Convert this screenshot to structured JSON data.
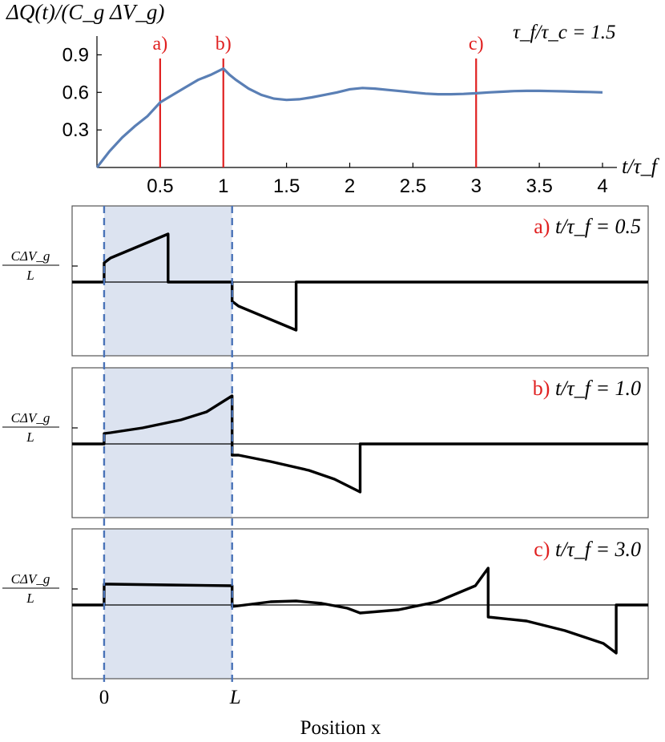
{
  "chart_data": [
    {
      "type": "line",
      "panel": "top",
      "ylabel": "ΔQ(t)/(C_g ΔV_g)",
      "xlabel": "t/τ_f",
      "annotation": "τ_f/τ_c = 1.5",
      "xlim": [
        0,
        4
      ],
      "ylim": [
        0,
        1.05
      ],
      "xticks": [
        0.5,
        1,
        1.5,
        2,
        2.5,
        3,
        3.5,
        4
      ],
      "xtick_labels": [
        "0.5",
        "1",
        "1.5",
        "2",
        "2.5",
        "3",
        "3.5",
        "4"
      ],
      "yticks": [
        0.3,
        0.6,
        0.9
      ],
      "ytick_labels": [
        "0.3",
        "0.6",
        "0.9"
      ],
      "series": [
        {
          "color": "#5a7fb5",
          "x": [
            0,
            0.1,
            0.2,
            0.3,
            0.4,
            0.5,
            0.6,
            0.7,
            0.8,
            0.9,
            1.0,
            1.05,
            1.1,
            1.2,
            1.3,
            1.4,
            1.5,
            1.6,
            1.7,
            1.8,
            1.9,
            2.0,
            2.1,
            2.2,
            2.3,
            2.4,
            2.5,
            2.6,
            2.7,
            2.8,
            2.9,
            3.0,
            3.1,
            3.2,
            3.3,
            3.4,
            3.5,
            3.6,
            3.7,
            3.8,
            3.9,
            4.0
          ],
          "y": [
            0,
            0.13,
            0.24,
            0.33,
            0.41,
            0.52,
            0.58,
            0.64,
            0.7,
            0.74,
            0.79,
            0.74,
            0.7,
            0.63,
            0.58,
            0.55,
            0.54,
            0.545,
            0.56,
            0.58,
            0.6,
            0.625,
            0.635,
            0.63,
            0.62,
            0.61,
            0.6,
            0.59,
            0.585,
            0.585,
            0.588,
            0.593,
            0.6,
            0.605,
            0.61,
            0.612,
            0.612,
            0.61,
            0.608,
            0.605,
            0.603,
            0.6
          ]
        }
      ],
      "markers": [
        {
          "x": 0.5,
          "label": "a)",
          "color": "#e02020"
        },
        {
          "x": 1.0,
          "label": "b)",
          "color": "#e02020"
        },
        {
          "x": 3.0,
          "label": "c)",
          "color": "#e02020"
        }
      ]
    },
    {
      "type": "line",
      "panel": "a",
      "tag": "a)",
      "title": "t/τ_f = 0.5",
      "ytick_label": "CΔV_g / L",
      "ytick_value": 1,
      "xlim": [
        -0.25,
        4.25
      ],
      "ylim": [
        -3.2,
        3.6
      ],
      "series": [
        {
          "color": "#000000",
          "x": [
            -0.25,
            0,
            0.0001,
            0.05,
            0.5,
            0.50001,
            1.0,
            1.0001,
            1.05,
            1.5,
            1.50001,
            4.25
          ],
          "y": [
            0,
            0,
            1.2,
            1.5,
            3.0,
            0,
            0,
            -1.2,
            -1.5,
            -3.0,
            0,
            0
          ]
        }
      ]
    },
    {
      "type": "line",
      "panel": "b",
      "tag": "b)",
      "title": "t/τ_f = 1.0",
      "ytick_label": "CΔV_g / L",
      "ytick_value": 1,
      "xlim": [
        -0.25,
        4.25
      ],
      "ylim": [
        -3.2,
        3.6
      ],
      "series": [
        {
          "color": "#000000",
          "x": [
            -0.25,
            0,
            0.0001,
            0.05,
            0.3,
            0.6,
            0.8,
            1.0,
            1.0001,
            1.05,
            1.3,
            1.6,
            1.8,
            2.0,
            2.00001,
            4.25
          ],
          "y": [
            0,
            0,
            0.65,
            0.7,
            1.0,
            1.5,
            2.0,
            3.0,
            -0.7,
            -0.7,
            -1.1,
            -1.65,
            -2.2,
            -3.0,
            0,
            0
          ]
        }
      ]
    },
    {
      "type": "line",
      "panel": "c",
      "tag": "c)",
      "title": "t/τ_f = 3.0",
      "ytick_label": "CΔV_g / L",
      "ytick_value": 1,
      "xlim": [
        -0.25,
        4.25
      ],
      "ylim": [
        -3.2,
        3.6
      ],
      "series": [
        {
          "color": "#000000",
          "x": [
            -0.25,
            0,
            0.0001,
            0.05,
            0.5,
            1.0,
            1.0001,
            1.1,
            1.3,
            1.5,
            1.7,
            1.9,
            2.0,
            2.3,
            2.6,
            2.9,
            3.0,
            3.0001,
            3.3,
            3.6,
            3.9,
            4.0,
            4.00001,
            4.25
          ],
          "y": [
            0,
            0,
            1.3,
            1.3,
            1.25,
            1.2,
            -0.1,
            0.0,
            0.2,
            0.25,
            0.1,
            -0.2,
            -0.5,
            -0.3,
            0.2,
            1.2,
            2.3,
            -0.75,
            -1.0,
            -1.6,
            -2.4,
            -3.0,
            0,
            0
          ]
        }
      ]
    }
  ],
  "shaded_region": {
    "x0": 0,
    "x1": 1,
    "color": "#dce3f0",
    "line_color": "#4a73b8"
  },
  "bottom_axis": {
    "tick_labels": [
      {
        "x": 0,
        "label": "0"
      },
      {
        "x": 1,
        "label": "L"
      }
    ],
    "xlabel": "Position x"
  }
}
